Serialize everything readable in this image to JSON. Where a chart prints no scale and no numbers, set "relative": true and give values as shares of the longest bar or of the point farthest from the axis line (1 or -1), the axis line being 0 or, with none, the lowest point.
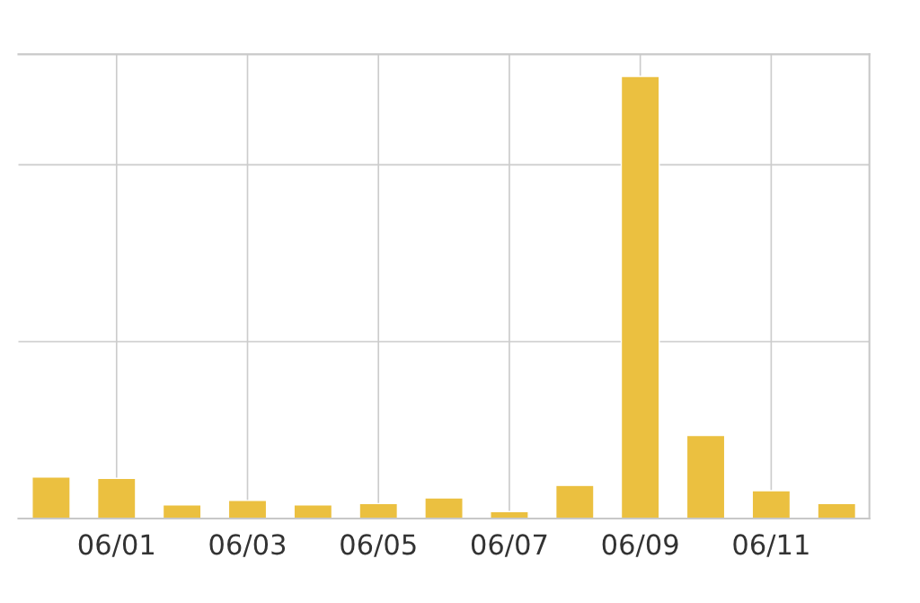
{
  "chart_data": {
    "type": "bar",
    "relative": true,
    "grid": true,
    "categories": [
      null,
      "06/01",
      null,
      "06/03",
      null,
      "06/05",
      null,
      "06/07",
      null,
      "06/09",
      null,
      "06/11",
      null
    ],
    "series": [
      {
        "color": "#ebc040",
        "values": [
          0.094,
          0.091,
          0.031,
          0.041,
          0.031,
          0.034,
          0.047,
          0.016,
          0.075,
          1,
          0.188,
          0.063,
          0.034
        ]
      }
    ]
  }
}
